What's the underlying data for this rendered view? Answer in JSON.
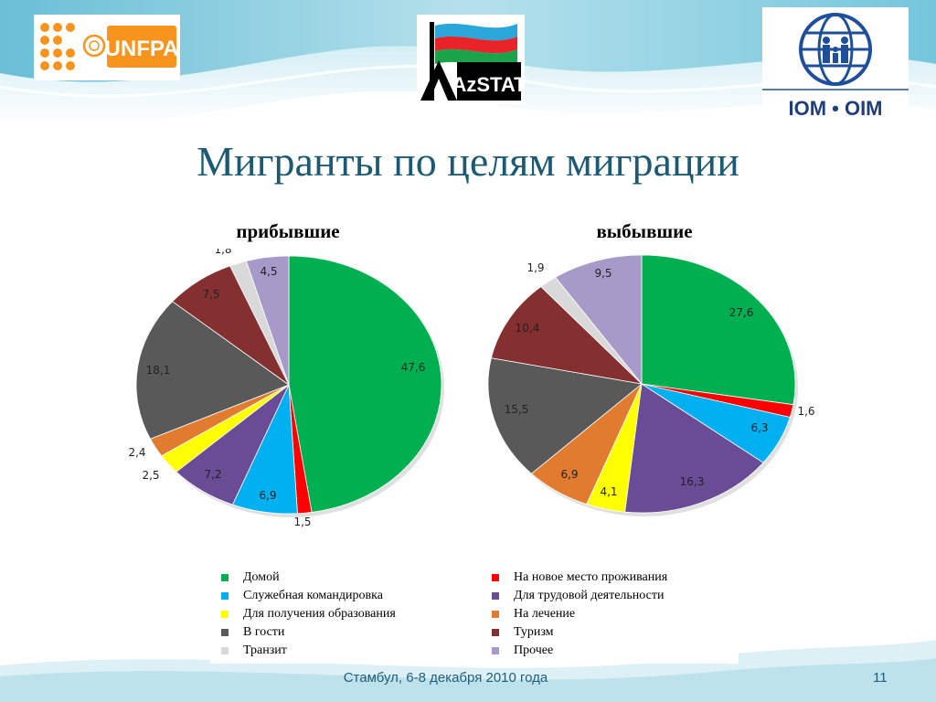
{
  "title": "Мигранты по целям миграции",
  "logos": {
    "unfpa": "UNFPA",
    "azstat": "AzSTAT",
    "iom": "IOM • OIM"
  },
  "colors": {
    "title": "#1b5a72",
    "accent": "#1f5d7a"
  },
  "legend": [
    {
      "label": "Домой",
      "color": "#00b050"
    },
    {
      "label": "На новое место проживания",
      "color": "#ff0000"
    },
    {
      "label": "Служебная командировка",
      "color": "#00b0f0"
    },
    {
      "label": "Для трудовой деятельности",
      "color": "#6a4c96"
    },
    {
      "label": "Для получения образования",
      "color": "#ffff00"
    },
    {
      "label": "На лечение",
      "color": "#e07b30"
    },
    {
      "label": "В гости",
      "color": "#595959"
    },
    {
      "label": "Туризм",
      "color": "#843030"
    },
    {
      "label": "Транзит",
      "color": "#d9d9d9"
    },
    {
      "label": "Прочее",
      "color": "#a89ac8"
    }
  ],
  "footer": {
    "text": "Стамбул, 6-8 декабря 2010 года",
    "page": "11"
  },
  "chart_data": [
    {
      "type": "pie",
      "title": "прибывшие",
      "categories": [
        "Домой",
        "На новое место проживания",
        "Служебная командировка",
        "Для трудовой деятельности",
        "Для получения образования",
        "На лечение",
        "В гости",
        "Туризм",
        "Транзит",
        "Прочее"
      ],
      "values": [
        47.6,
        1.5,
        6.9,
        7.2,
        2.5,
        2.4,
        18.1,
        7.5,
        1.8,
        4.5
      ],
      "labels": [
        "47,6",
        "1,5",
        "6,9",
        "7,2",
        "2,5",
        "2,4",
        "18,1",
        "7,5",
        "1,8",
        "4,5"
      ],
      "start": "12 o'clock",
      "direction": "clockwise"
    },
    {
      "type": "pie",
      "title": "выбывшие",
      "categories": [
        "Домой",
        "На новое место проживания",
        "Служебная командировка",
        "Для трудовой деятельности",
        "Для получения образования",
        "На лечение",
        "В гости",
        "Туризм",
        "Транзит",
        "Прочее"
      ],
      "values": [
        27.6,
        1.6,
        6.3,
        16.3,
        4.1,
        6.9,
        15.5,
        10.4,
        1.9,
        9.5
      ],
      "labels": [
        "27,6",
        "1,6",
        "6,3",
        "16,3",
        "4,1",
        "6,9",
        "15,5",
        "10,4",
        "1,9",
        "9,5"
      ],
      "start": "12 o'clock",
      "direction": "clockwise"
    }
  ]
}
